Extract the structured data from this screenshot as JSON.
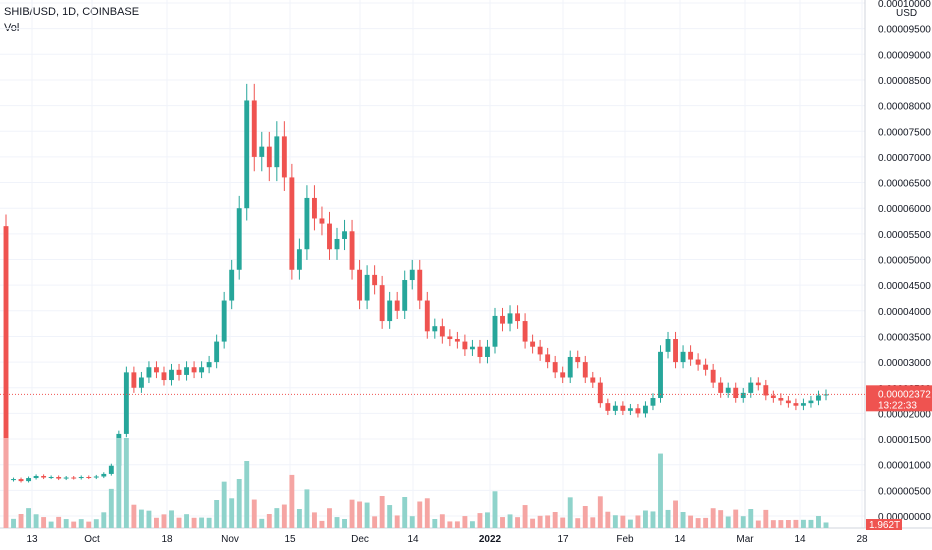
{
  "header": {
    "symbol_line": "SHIB/USD, 1D, COINBASE",
    "volume_label": "Vol"
  },
  "price_axis": {
    "currency": "USD",
    "top_label": "0.00010000",
    "labels": [
      "0.00009500",
      "0.00009000",
      "0.00008500",
      "0.00008000",
      "0.00007500",
      "0.00007000",
      "0.00006500",
      "0.00006000",
      "0.00005500",
      "0.00005000",
      "0.00004500",
      "0.00004000",
      "0.00003500",
      "0.00003000",
      "0.00002500",
      "0.00002000",
      "0.00001500",
      "0.00001000",
      "0.00000500",
      "0.00000000"
    ]
  },
  "current_price": {
    "value": "0.00002372",
    "countdown": "13:22:33",
    "color": "#ef5350"
  },
  "volume_badge": {
    "value": "1.962T",
    "color": "#ef5350"
  },
  "time_axis": {
    "labels": [
      "13",
      "Oct",
      "18",
      "Nov",
      "15",
      "Dec",
      "14",
      "2022",
      "17",
      "Feb",
      "14",
      "Mar",
      "14",
      "28"
    ]
  },
  "colors": {
    "up": "#26a69a",
    "down": "#ef5350",
    "vol_up": "#8fd3cb",
    "vol_down": "#f5a5a3",
    "grid": "#f0f3fa"
  },
  "chart_data": {
    "type": "candlestick",
    "title": "SHIB/USD, 1D, COINBASE",
    "ylabel": "USD",
    "ylim": [
      0,
      0.0001
    ],
    "grid": true,
    "x_ticks": [
      "13",
      "Oct",
      "18",
      "Nov",
      "15",
      "Dec",
      "14",
      "2022",
      "17",
      "Feb",
      "14",
      "Mar",
      "14",
      "28"
    ],
    "close_series": [
      7e-06,
      7.2e-06,
      6.8e-06,
      7.4e-06,
      7.8e-06,
      7.5e-06,
      7.6e-06,
      7.3e-06,
      7.5e-06,
      7.4e-06,
      7.6e-06,
      7.5e-06,
      7.7e-06,
      8.2e-06,
      9.8e-06,
      1.6e-05,
      2.8e-05,
      2.5e-05,
      2.7e-05,
      2.9e-05,
      2.8e-05,
      2.65e-05,
      2.85e-05,
      2.75e-05,
      2.9e-05,
      2.8e-05,
      2.9e-05,
      3e-05,
      3.4e-05,
      4.2e-05,
      4.8e-05,
      6e-05,
      8.1e-05,
      7e-05,
      7.2e-05,
      6.8e-05,
      7.4e-05,
      6.6e-05,
      4.8e-05,
      5.2e-05,
      6.2e-05,
      5.8e-05,
      5.7e-05,
      5.2e-05,
      5.4e-05,
      5.55e-05,
      4.8e-05,
      4.2e-05,
      4.7e-05,
      4.5e-05,
      3.8e-05,
      4.2e-05,
      4e-05,
      4.6e-05,
      4.8e-05,
      4.2e-05,
      3.6e-05,
      3.7e-05,
      3.5e-05,
      3.45e-05,
      3.4e-05,
      3.25e-05,
      3.3e-05,
      3.1e-05,
      3.3e-05,
      3.9e-05,
      3.75e-05,
      3.95e-05,
      3.8e-05,
      3.4e-05,
      3.3e-05,
      3.15e-05,
      3e-05,
      2.8e-05,
      2.7e-05,
      3.1e-05,
      3e-05,
      2.7e-05,
      2.6e-05,
      2.2e-05,
      2.05e-05,
      2.15e-05,
      2.05e-05,
      2.1e-05,
      2e-05,
      2.15e-05,
      2.3e-05,
      3.2e-05,
      3.45e-05,
      3e-05,
      3.2e-05,
      3.05e-05,
      2.95e-05,
      2.85e-05,
      2.6e-05,
      2.4e-05,
      2.5e-05,
      2.3e-05,
      2.4e-05,
      2.6e-05,
      2.55e-05,
      2.35e-05,
      2.3e-05,
      2.25e-05,
      2.2e-05,
      2.15e-05,
      2.2e-05,
      2.25e-05,
      2.35e-05,
      2.37e-05
    ],
    "last_close": 2.372e-05,
    "volume_last": "1.962T"
  }
}
